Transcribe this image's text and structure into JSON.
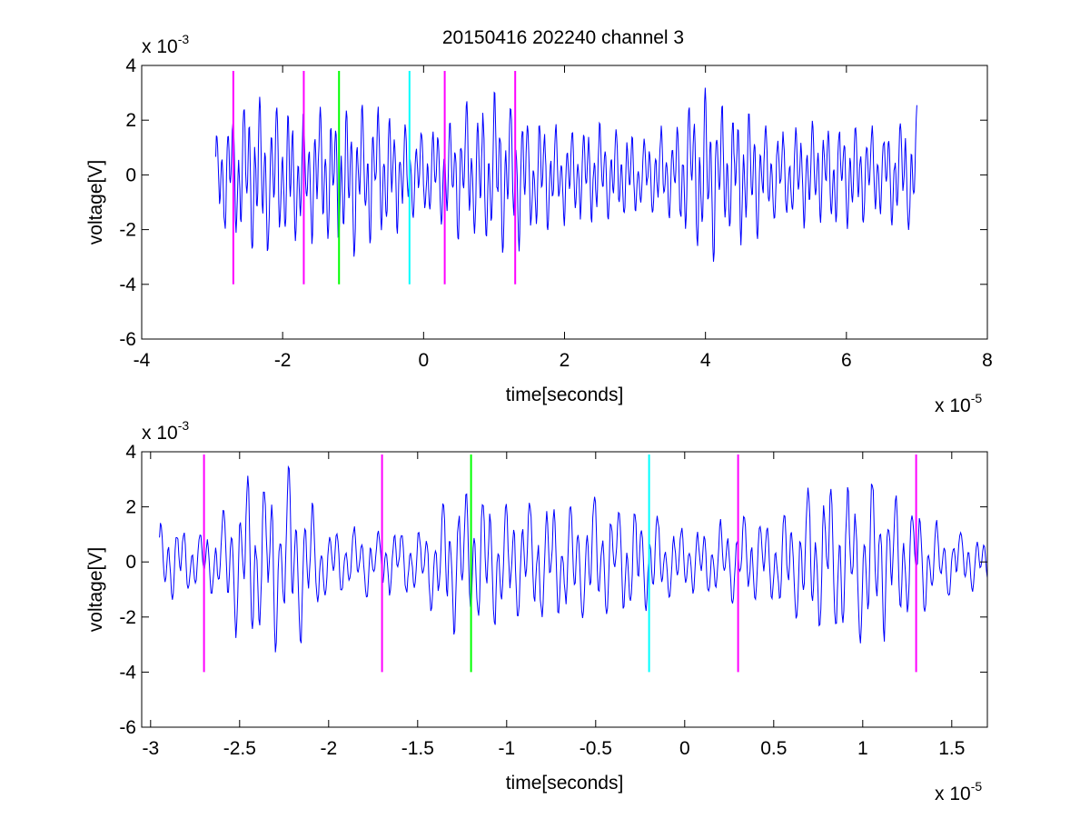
{
  "title": "20150416 202240 channel 3",
  "colors": {
    "signal": "#0000ff",
    "marker_magenta": "#ff00ff",
    "marker_green": "#00ff00",
    "marker_cyan": "#00ffff",
    "axes": "#000000",
    "background": "#ffffff"
  },
  "chart_data": [
    {
      "type": "line",
      "title": "20150416 202240 channel 3",
      "xlabel": "time[seconds]",
      "ylabel": "voltage[V]",
      "x_exponent_label": "x 10",
      "x_exponent": "-5",
      "y_exponent_label": "x 10",
      "y_exponent": "-3",
      "xlim": [
        -4e-05,
        8e-05
      ],
      "ylim": [
        -0.006,
        0.004
      ],
      "x_ticks": [
        -4e-05,
        -2e-05,
        0,
        2e-05,
        4e-05,
        6e-05,
        8e-05
      ],
      "x_tick_labels": [
        "-4",
        "-2",
        "0",
        "2",
        "4",
        "6",
        "8"
      ],
      "y_ticks": [
        -0.006,
        -0.004,
        -0.002,
        0,
        0.002,
        0.004
      ],
      "y_tick_labels": [
        "-6",
        "-4",
        "-2",
        "0",
        "2",
        "4"
      ],
      "grid": false,
      "series": [
        {
          "color": "#0000ff",
          "x_start": -2.95e-05,
          "x_end": 7e-05,
          "envelope_x": [
            -2.95e-05,
            -2.5e-05,
            -2e-05,
            -1.5e-05,
            -1e-05,
            -5e-06,
            0,
            5e-06,
            1e-05,
            1.5e-05,
            2e-05,
            2.5e-05,
            3e-05,
            3.5e-05,
            4e-05,
            4.5e-05,
            5e-05,
            5.5e-05,
            6e-05,
            6.5e-05,
            7e-05
          ],
          "envelope_y": [
            0.0015,
            0.0028,
            0.0025,
            0.0022,
            0.0027,
            0.0022,
            0.0015,
            0.0022,
            0.0028,
            0.0022,
            0.0016,
            0.0018,
            0.0014,
            0.0016,
            0.003,
            0.0024,
            0.0016,
            0.0018,
            0.0018,
            0.0017,
            0.0022
          ]
        }
      ],
      "markers": [
        {
          "x": -2.7e-05,
          "color": "#ff00ff",
          "y_range": [
            -0.004,
            0.0038
          ]
        },
        {
          "x": -1.7e-05,
          "color": "#ff00ff",
          "y_range": [
            -0.004,
            0.0038
          ]
        },
        {
          "x": -1.2e-05,
          "color": "#00ff00",
          "y_range": [
            -0.004,
            0.0038
          ]
        },
        {
          "x": -2e-06,
          "color": "#00ffff",
          "y_range": [
            -0.004,
            0.0038
          ]
        },
        {
          "x": 3e-06,
          "color": "#ff00ff",
          "y_range": [
            -0.004,
            0.0038
          ]
        },
        {
          "x": 1.3e-05,
          "color": "#ff00ff",
          "y_range": [
            -0.004,
            0.0038
          ]
        }
      ]
    },
    {
      "type": "line",
      "title": "",
      "xlabel": "time[seconds]",
      "ylabel": "voltage[V]",
      "x_exponent_label": "x 10",
      "x_exponent": "-5",
      "y_exponent_label": "x 10",
      "y_exponent": "-3",
      "xlim": [
        -3.05e-05,
        1.7e-05
      ],
      "ylim": [
        -0.006,
        0.004
      ],
      "x_ticks": [
        -3e-05,
        -2.5e-05,
        -2e-05,
        -1.5e-05,
        -1e-05,
        -5e-06,
        0,
        5e-06,
        1e-05,
        1.5e-05
      ],
      "x_tick_labels": [
        "-3",
        "-2.5",
        "-2",
        "-1.5",
        "-1",
        "-0.5",
        "0",
        "0.5",
        "1",
        "1.5"
      ],
      "y_ticks": [
        -0.006,
        -0.004,
        -0.002,
        0,
        0.002,
        0.004
      ],
      "y_tick_labels": [
        "-6",
        "-4",
        "-2",
        "0",
        "2",
        "4"
      ],
      "grid": false,
      "series": [
        {
          "color": "#0000ff",
          "x_start": -2.95e-05,
          "x_end": 1.7e-05,
          "envelope_x": [
            -2.95e-05,
            -2.7e-05,
            -2.45e-05,
            -2.2e-05,
            -2e-05,
            -1.75e-05,
            -1.5e-05,
            -1.25e-05,
            -1e-05,
            -7.5e-06,
            -5e-06,
            -2.5e-06,
            0,
            2.5e-06,
            5e-06,
            7.5e-06,
            1e-05,
            1.25e-05,
            1.5e-05,
            1.7e-05
          ],
          "envelope_y": [
            0.0015,
            0.001,
            0.003,
            0.003,
            0.0012,
            0.0012,
            0.0012,
            0.0028,
            0.0022,
            0.002,
            0.0022,
            0.0018,
            0.0012,
            0.0014,
            0.0016,
            0.0026,
            0.0028,
            0.0022,
            0.0012,
            0.0008
          ]
        }
      ],
      "markers": [
        {
          "x": -2.7e-05,
          "color": "#ff00ff",
          "y_range": [
            -0.004,
            0.0039
          ]
        },
        {
          "x": -1.7e-05,
          "color": "#ff00ff",
          "y_range": [
            -0.004,
            0.0039
          ]
        },
        {
          "x": -1.2e-05,
          "color": "#00ff00",
          "y_range": [
            -0.004,
            0.0039
          ]
        },
        {
          "x": -2e-06,
          "color": "#00ffff",
          "y_range": [
            -0.004,
            0.0039
          ]
        },
        {
          "x": 3e-06,
          "color": "#ff00ff",
          "y_range": [
            -0.004,
            0.0039
          ]
        },
        {
          "x": 1.3e-05,
          "color": "#ff00ff",
          "y_range": [
            -0.004,
            0.0039
          ]
        }
      ]
    }
  ]
}
